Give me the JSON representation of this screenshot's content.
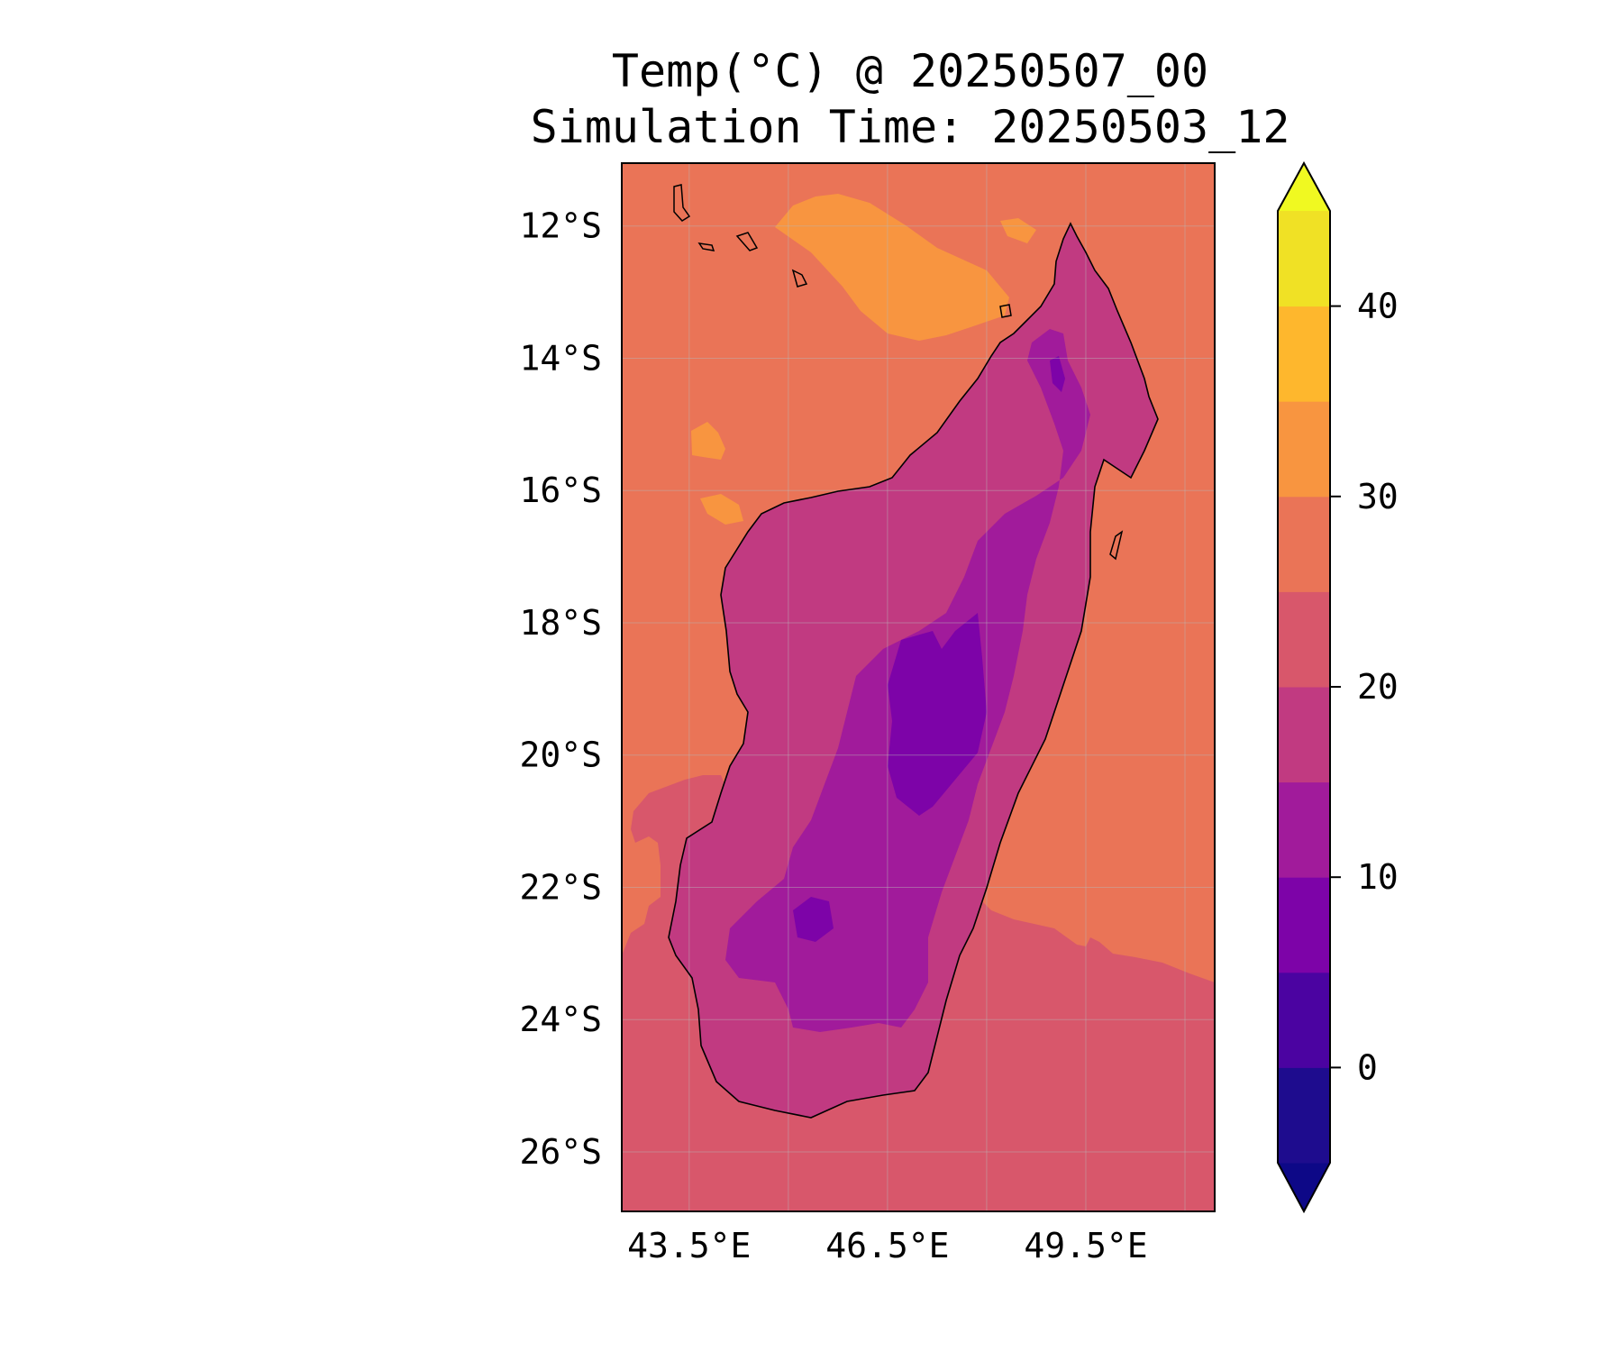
{
  "title": "Temp(°C) @ 20250507_00",
  "subtitle": "Simulation Time: 20250503_12",
  "map": {
    "region": "Madagascar",
    "variable": "Temp(°C)",
    "lon_ticks": [
      {
        "lon": 43.5,
        "label": "43.5°E"
      },
      {
        "lon": 46.5,
        "label": "46.5°E"
      },
      {
        "lon": 49.5,
        "label": "49.5°E"
      }
    ],
    "lat_ticks": [
      {
        "lat": -12,
        "label": "12°S"
      },
      {
        "lat": -14,
        "label": "14°S"
      },
      {
        "lat": -16,
        "label": "16°S"
      },
      {
        "lat": -18,
        "label": "18°S"
      },
      {
        "lat": -20,
        "label": "20°S"
      },
      {
        "lat": -22,
        "label": "22°S"
      },
      {
        "lat": -24,
        "label": "24°S"
      },
      {
        "lat": -26,
        "label": "26°S"
      }
    ],
    "lon_range": [
      42.48,
      51.45
    ],
    "lat_range": [
      -26.9,
      -11.05
    ],
    "gridlines": true
  },
  "colorbar": {
    "extend": "both",
    "levels": [
      -5,
      0,
      5,
      10,
      15,
      20,
      25,
      30,
      35,
      40,
      45
    ],
    "colors": [
      "#1e0c8e",
      "#4b03a1",
      "#7d03a8",
      "#a11b9b",
      "#c13a81",
      "#d8576b",
      "#ea7457",
      "#f89540",
      "#feb72d",
      "#f0e125"
    ],
    "under_color": "#0d0887",
    "over_color": "#f0f921",
    "tick_values": [
      0,
      10,
      20,
      30,
      40
    ],
    "tick_labels": [
      "0",
      "10",
      "20",
      "30",
      "40"
    ]
  },
  "colors": {
    "ocean_north": "#ea7457",
    "ocean_south": "#d8576b",
    "land_cool": "#c13a81",
    "land_cold": "#a11b9b",
    "land_coldest": "#7d03a8",
    "warm_patch": "#f89540"
  }
}
